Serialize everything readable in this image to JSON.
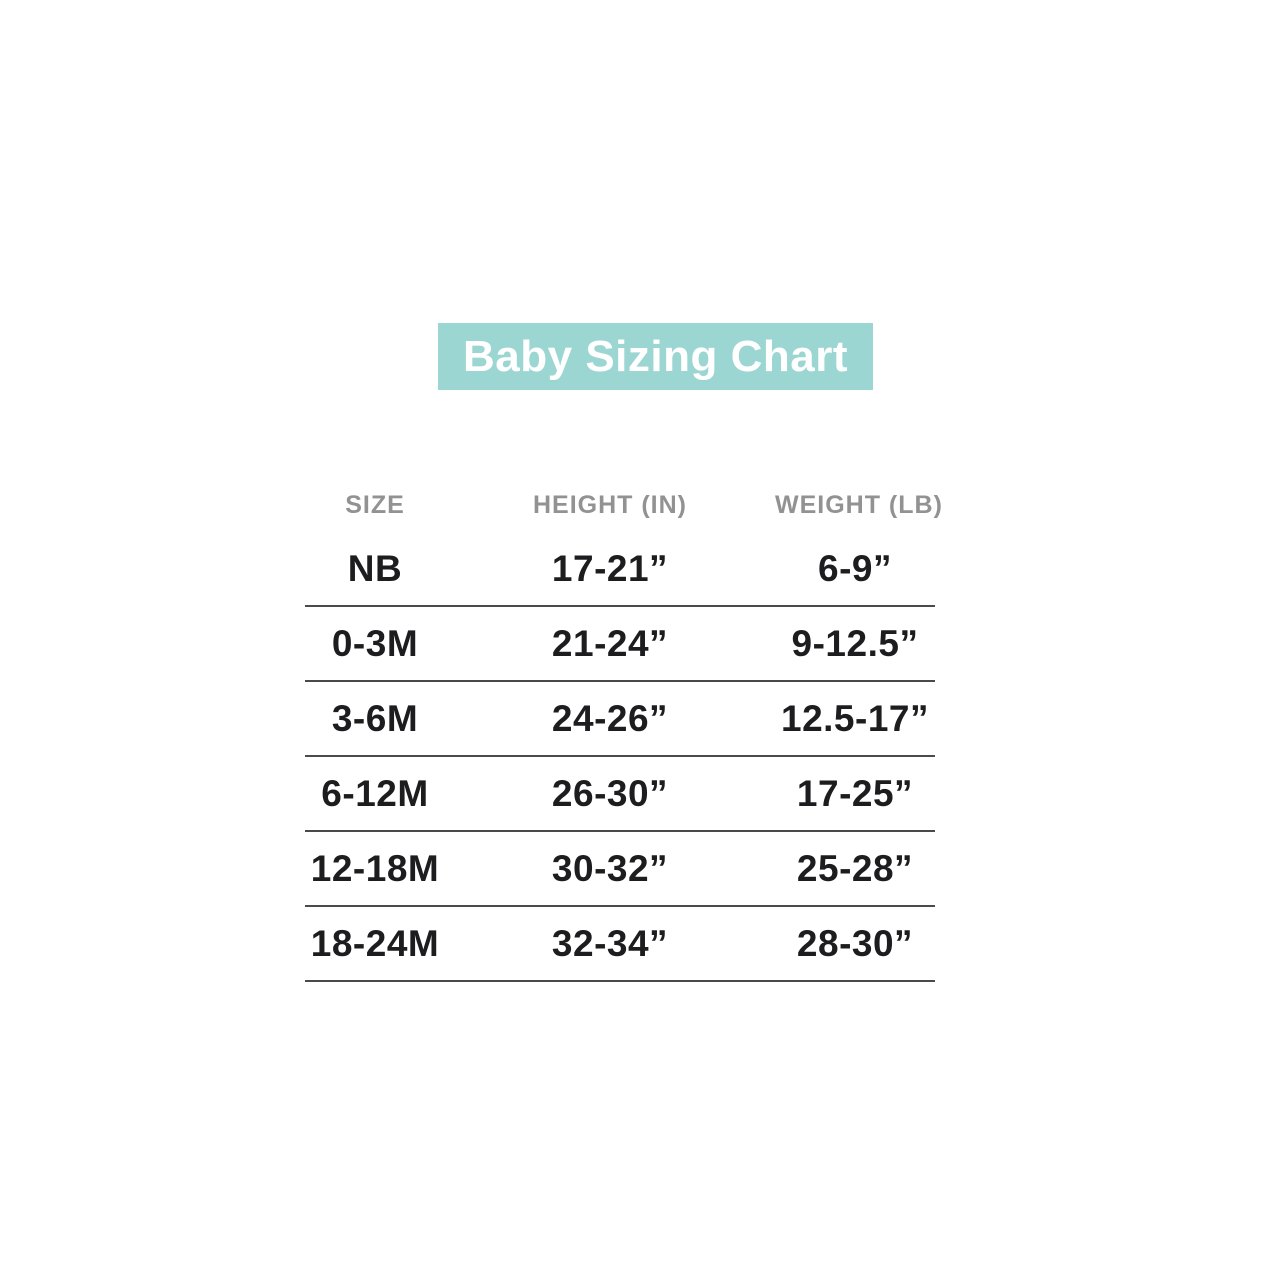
{
  "title_banner": {
    "label": "Baby Sizing Chart",
    "bg_color": "#9cd6d2",
    "text_color": "#ffffff"
  },
  "table": {
    "headers": {
      "size": "SIZE",
      "height": "HEIGHT (IN)",
      "weight": "WEIGHT (LB)"
    },
    "rows": [
      {
        "size": "NB",
        "height": "17-21”",
        "weight": "6-9”"
      },
      {
        "size": "0-3M",
        "height": "21-24”",
        "weight": "9-12.5”"
      },
      {
        "size": "3-6M",
        "height": "24-26”",
        "weight": "12.5-17”"
      },
      {
        "size": "6-12M",
        "height": "26-30”",
        "weight": "17-25”"
      },
      {
        "size": "12-18M",
        "height": "30-32”",
        "weight": "25-28”"
      },
      {
        "size": "18-24M",
        "height": "32-34”",
        "weight": "28-30”"
      }
    ]
  },
  "chart_data": {
    "type": "table",
    "title": "Baby Sizing Chart",
    "columns": [
      "SIZE",
      "HEIGHT (IN)",
      "WEIGHT (LB)"
    ],
    "rows": [
      [
        "NB",
        "17-21\"",
        "6-9\""
      ],
      [
        "0-3M",
        "21-24\"",
        "9-12.5\""
      ],
      [
        "3-6M",
        "24-26\"",
        "12.5-17\""
      ],
      [
        "6-12M",
        "26-30\"",
        "17-25\""
      ],
      [
        "12-18M",
        "30-32\"",
        "25-28\""
      ],
      [
        "18-24M",
        "32-34\"",
        "28-30\""
      ]
    ],
    "layout": {
      "header_text_color": "#929292",
      "data_text_color": "#1d1d1f",
      "row_divider_color": "#4a4a4a",
      "grid": "horizontal-rules-only",
      "title_style": "white-on-teal-banner"
    }
  }
}
